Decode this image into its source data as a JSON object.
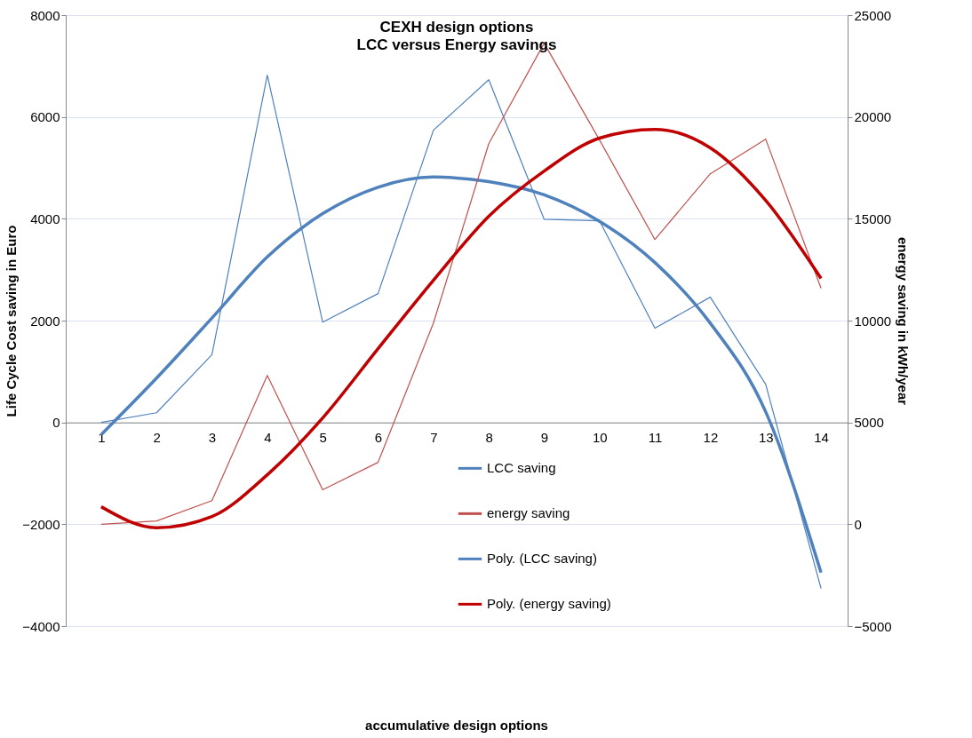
{
  "chart_data": {
    "type": "line",
    "title": "CEXH design options",
    "subtitle": "LCC versus Energy savings",
    "ylabel": "Life Cycle Cost saving in Euro",
    "y2label": "energy saving in kWh/year",
    "annotations": [
      "accumulative design options"
    ],
    "x": [
      1,
      2,
      3,
      4,
      5,
      6,
      7,
      8,
      9,
      10,
      11,
      12,
      13,
      14
    ],
    "series": [
      {
        "name": "LCC saving",
        "color": "#4f81bd",
        "values": [
          0,
          190,
          1330,
          6820,
          1970,
          2530,
          5740,
          6730,
          3990,
          3960,
          1850,
          2460,
          750,
          -3260
        ]
      },
      {
        "name": "energy saving",
        "color": "#c0504d",
        "axis": "y2",
        "values": [
          0,
          160,
          1160,
          7310,
          1690,
          3040,
          9880,
          18690,
          23620,
          18870,
          13980,
          17210,
          18910,
          11590
        ]
      },
      {
        "name": "Poly. (LCC saving)",
        "color": "#4f81bd",
        "type": "line",
        "x": [
          1,
          2,
          3,
          4,
          5,
          6,
          7,
          8,
          9,
          10,
          11,
          12,
          13,
          14
        ],
        "values": [
          -240,
          870,
          2050,
          3250,
          4100,
          4620,
          4820,
          4730,
          4470,
          3950,
          3140,
          1950,
          210,
          -2950
        ]
      },
      {
        "name": "Poly. (energy saving)",
        "color": "#c00000",
        "type": "line",
        "axis": "y2",
        "x": [
          1,
          2,
          3,
          4,
          5,
          6,
          7,
          8,
          9,
          10,
          11,
          12,
          13,
          14
        ],
        "values": [
          860,
          -170,
          380,
          2430,
          5220,
          8620,
          11980,
          15120,
          17340,
          18960,
          19390,
          18480,
          15900,
          12070
        ]
      }
    ],
    "xlim": [
      0.36,
      14.48
    ],
    "xticks": [
      1,
      2,
      3,
      4,
      5,
      6,
      7,
      8,
      9,
      10,
      11,
      12,
      13,
      14
    ],
    "ylim": [
      -4000,
      8000
    ],
    "yticks": [
      -4000,
      -2000,
      0,
      2000,
      4000,
      6000,
      8000
    ],
    "y2lim": [
      -5000,
      25000
    ],
    "y2ticks": [
      -5000,
      0,
      5000,
      10000,
      15000,
      20000,
      25000
    ],
    "grid": "y",
    "legend": "bottom",
    "marker": "none",
    "line_style": "solid"
  }
}
